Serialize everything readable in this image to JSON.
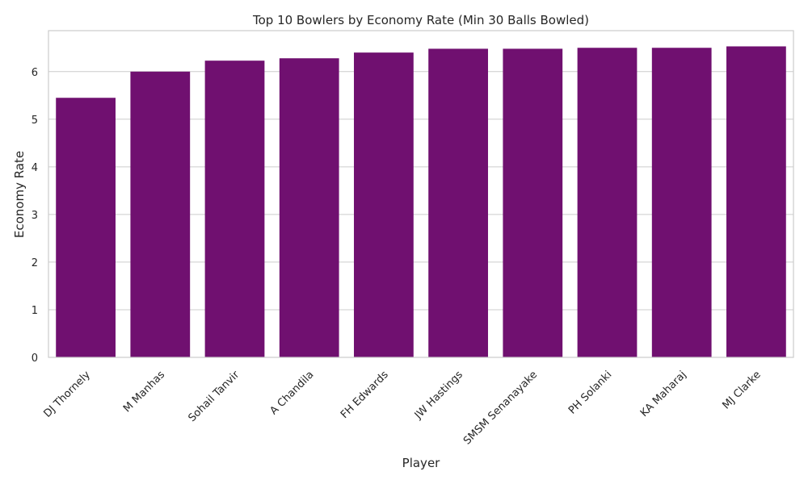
{
  "chart_data": {
    "type": "bar",
    "title": "Top 10 Bowlers by Economy Rate (Min 30 Balls Bowled)",
    "xlabel": "Player",
    "ylabel": "Economy Rate",
    "categories": [
      "DJ Thornely",
      "M Manhas",
      "Sohail Tanvir",
      "A Chandila",
      "FH Edwards",
      "JW Hastings",
      "SMSM Senanayake",
      "PH Solanki",
      "KA Maharaj",
      "MJ Clarke"
    ],
    "values": [
      5.45,
      6.0,
      6.23,
      6.28,
      6.4,
      6.48,
      6.48,
      6.5,
      6.5,
      6.53
    ],
    "ylim": [
      0,
      6.86
    ],
    "yticks": [
      0,
      1,
      2,
      3,
      4,
      5,
      6
    ],
    "grid": "y",
    "bar_color": "#701070",
    "grid_color": "#cccccc",
    "spine_color": "#cccccc"
  }
}
